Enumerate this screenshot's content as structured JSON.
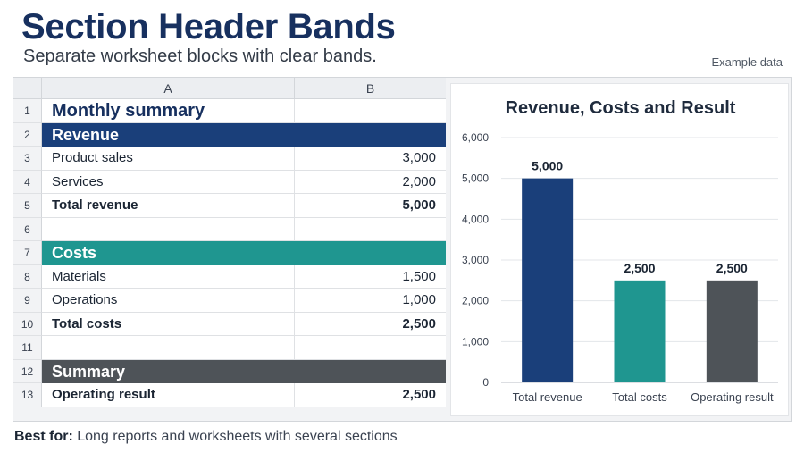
{
  "header": {
    "title": "Section Header Bands",
    "subtitle": "Separate worksheet blocks with clear bands.",
    "tag": "Example data"
  },
  "sheet": {
    "columns": [
      "A",
      "B"
    ],
    "rows": [
      {
        "num": "1",
        "a": "Monthly summary",
        "b": "",
        "kind": "big"
      },
      {
        "num": "2",
        "a": "Revenue",
        "b": "",
        "kind": "band",
        "color": "#1a3f7a"
      },
      {
        "num": "3",
        "a": "Product sales",
        "b": "3,000",
        "kind": "normal"
      },
      {
        "num": "4",
        "a": "Services",
        "b": "2,000",
        "kind": "normal"
      },
      {
        "num": "5",
        "a": "Total revenue",
        "b": "5,000",
        "kind": "bold"
      },
      {
        "num": "6",
        "a": "",
        "b": "",
        "kind": "normal"
      },
      {
        "num": "7",
        "a": "Costs",
        "b": "",
        "kind": "band",
        "color": "#1f9690"
      },
      {
        "num": "8",
        "a": "Materials",
        "b": "1,500",
        "kind": "normal"
      },
      {
        "num": "9",
        "a": "Operations",
        "b": "1,000",
        "kind": "normal"
      },
      {
        "num": "10",
        "a": "Total costs",
        "b": "2,500",
        "kind": "bold"
      },
      {
        "num": "11",
        "a": "",
        "b": "",
        "kind": "normal"
      },
      {
        "num": "12",
        "a": "Summary",
        "b": "",
        "kind": "band",
        "color": "#4e5358"
      },
      {
        "num": "13",
        "a": "Operating result",
        "b": "2,500",
        "kind": "bold"
      }
    ]
  },
  "chart_data": {
    "type": "bar",
    "title": "Revenue, Costs and Result",
    "categories": [
      "Total revenue",
      "Total costs",
      "Operating result"
    ],
    "values": [
      5000,
      2500,
      2500
    ],
    "value_labels": [
      "5,000",
      "2,500",
      "2,500"
    ],
    "colors": [
      "#1a3f7a",
      "#1f9690",
      "#4e5358"
    ],
    "ylim": [
      0,
      6000
    ],
    "yticks": [
      0,
      1000,
      2000,
      3000,
      4000,
      5000,
      6000
    ],
    "ytick_labels": [
      "0",
      "1,000",
      "2,000",
      "3,000",
      "4,000",
      "5,000",
      "6,000"
    ],
    "grid": true,
    "legend": "none",
    "xlabel": "",
    "ylabel": ""
  },
  "footer": {
    "label": "Best for:",
    "text": "Long reports and worksheets with several sections"
  }
}
